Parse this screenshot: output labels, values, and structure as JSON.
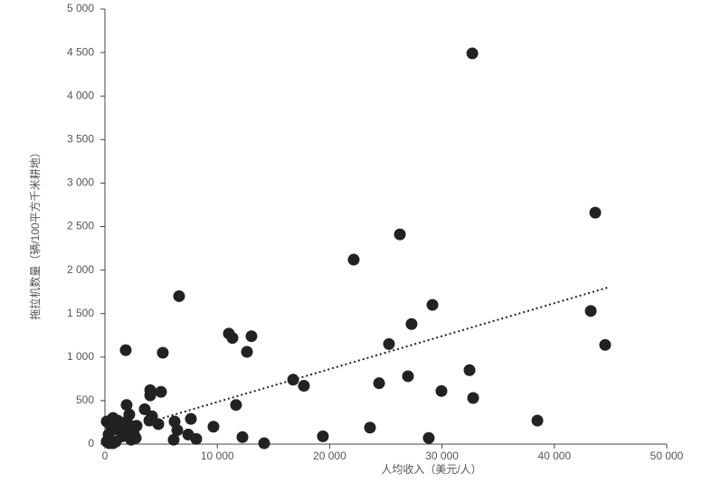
{
  "chart_data": {
    "type": "scatter",
    "x_label": "人均收入（美元/人）",
    "y_label": "拖拉机数量（辆/100平方千米耕地）",
    "xlim": [
      0,
      50000
    ],
    "ylim": [
      0,
      5000
    ],
    "xticks": [
      0,
      {
        "value": 10000,
        "label": "10 000"
      },
      {
        "value": 20000,
        "label": "20 000"
      },
      {
        "value": 30000,
        "label": "30 000"
      },
      {
        "value": 40000,
        "label": "40 000"
      },
      {
        "value": 50000,
        "label": "50 000"
      }
    ],
    "yticks": [
      0,
      500,
      {
        "value": 1000,
        "label": "1 000"
      },
      {
        "value": 1500,
        "label": "1 500"
      },
      {
        "value": 2000,
        "label": "2 000"
      },
      {
        "value": 2500,
        "label": "2 500"
      },
      {
        "value": 3000,
        "label": "3 000"
      },
      {
        "value": 3500,
        "label": "3 500"
      },
      {
        "value": 4000,
        "label": "4 000"
      },
      {
        "value": 4500,
        "label": "4 500"
      },
      {
        "value": 5000,
        "label": "5 000"
      }
    ],
    "color": "#222222",
    "x": [
      32700,
      43640,
      26250,
      22140,
      29150,
      27290,
      43240,
      44520,
      25280,
      6600,
      11030,
      11350,
      13040,
      12640,
      5150,
      1850,
      16750,
      17710,
      24400,
      26970,
      32450,
      29950,
      32770,
      38490,
      23590,
      28820,
      19400,
      14170,
      12240,
      9660,
      11670,
      4990,
      4030,
      4030,
      3540,
      4190,
      3950,
      4750,
      6200,
      7650,
      6440,
      7410,
      6120,
      8130,
      1930,
      2170,
      2820,
      2500,
      160,
      320,
      480,
      720,
      890,
      970,
      1130,
      1290,
      1530,
      1770,
      1930,
      2170,
      2330,
      2580,
      2740,
      160,
      400,
      720
    ],
    "values": [
      4490,
      2660,
      2410,
      2120,
      1600,
      1380,
      1530,
      1140,
      1150,
      1700,
      1270,
      1220,
      1240,
      1060,
      1050,
      1080,
      740,
      670,
      700,
      780,
      850,
      610,
      530,
      270,
      190,
      70,
      90,
      10,
      80,
      200,
      450,
      600,
      620,
      560,
      400,
      320,
      270,
      230,
      260,
      290,
      160,
      110,
      50,
      60,
      450,
      340,
      210,
      140,
      260,
      110,
      220,
      300,
      170,
      30,
      270,
      220,
      90,
      170,
      260,
      220,
      50,
      110,
      70,
      30,
      10,
      10
    ],
    "trendline": {
      "x": [
        5150,
        44770
      ],
      "values": [
        300,
        1800
      ]
    }
  }
}
